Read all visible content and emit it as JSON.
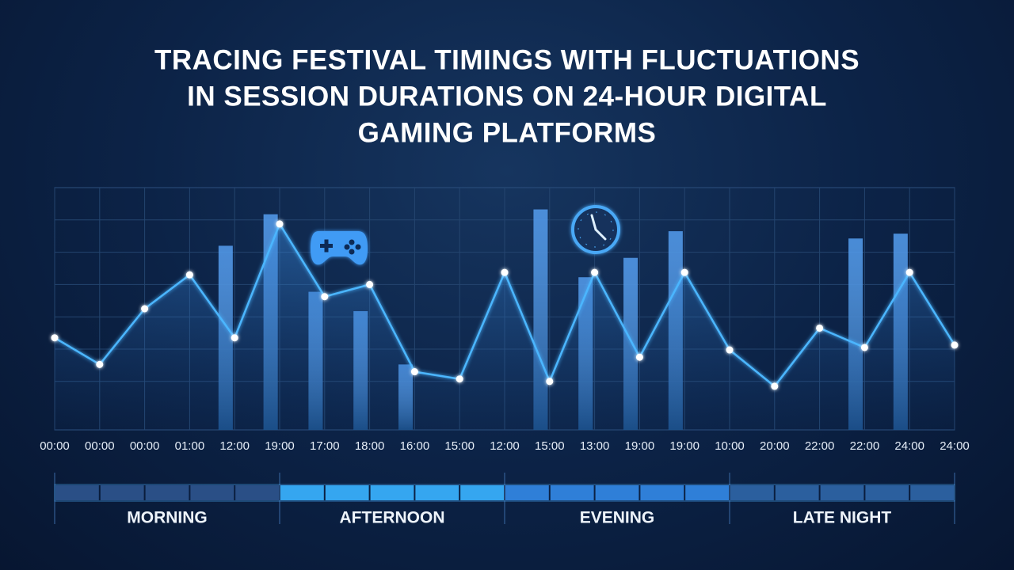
{
  "chart_data": {
    "type": "line-bar",
    "title": [
      "TRACING FESTIVAL TIMINGS WITH FLUCTUATIONS",
      "IN SESSION DURATIONS ON 24-HOUR DIGITAL",
      "GAMING PLATFORMS"
    ],
    "categories": [
      "00:00",
      "00:00",
      "00:00",
      "01:00",
      "12:00",
      "19:00",
      "17:00",
      "18:00",
      "16:00",
      "15:00",
      "12:00",
      "15:00",
      "13:00",
      "19:00",
      "19:00",
      "10:00",
      "20:00",
      "22:00",
      "22:00",
      "24:00",
      "24:00"
    ],
    "ylim": [
      0,
      100
    ],
    "series": [
      {
        "kind": "line",
        "color": "#4cb6ff",
        "values": [
          38,
          27,
          50,
          64,
          38,
          85,
          55,
          60,
          24,
          21,
          65,
          20,
          65,
          30,
          65,
          33,
          18,
          42,
          34,
          65,
          35
        ]
      },
      {
        "kind": "bar",
        "color": "#2f86e8",
        "values": [
          null,
          null,
          null,
          null,
          76,
          89,
          57,
          49,
          27,
          null,
          null,
          91,
          63,
          71,
          82,
          null,
          null,
          null,
          79,
          81,
          null
        ]
      }
    ],
    "periods": [
      {
        "name": "MORNING",
        "color": "#2a4f86"
      },
      {
        "name": "AFTERNOON",
        "color": "#35a6f0"
      },
      {
        "name": "EVENING",
        "color": "#2f7fd8"
      },
      {
        "name": "LATE NIGHT",
        "color": "#2b5f9e"
      }
    ]
  }
}
